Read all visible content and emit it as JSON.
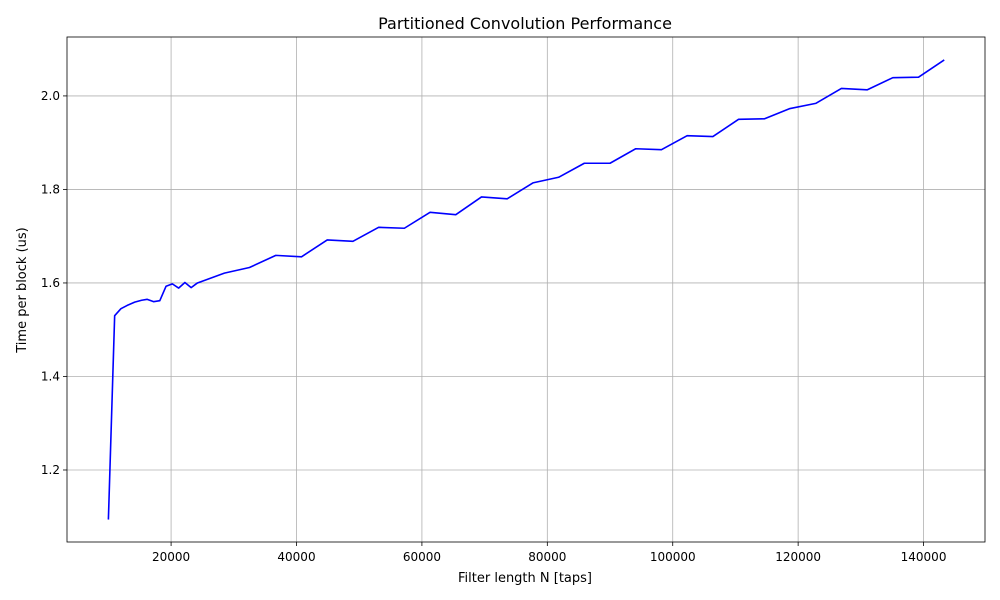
{
  "chart_data": {
    "type": "line",
    "title": "Partitioned Convolution Performance",
    "xlabel": "Filter length N [taps]",
    "ylabel": "Time per block (us)",
    "xlim": [
      3400,
      149800
    ],
    "ylim": [
      1.046,
      2.126
    ],
    "xticks": [
      20000,
      40000,
      60000,
      80000,
      100000,
      120000,
      140000
    ],
    "yticks": [
      1.2,
      1.4,
      1.6,
      1.8,
      2.0
    ],
    "xtick_labels": [
      "20000",
      "40000",
      "60000",
      "80000",
      "100000",
      "120000",
      "140000"
    ],
    "ytick_labels": [
      "1.2",
      "1.4",
      "1.6",
      "1.8",
      "2.0"
    ],
    "grid": true,
    "series": [
      {
        "color": "#0000ff",
        "x": [
          10000,
          11000,
          12000,
          13000,
          14200,
          15300,
          16200,
          17200,
          18200,
          19200,
          20200,
          21200,
          22200,
          23200,
          24200,
          28500,
          32500,
          36700,
          40800,
          44900,
          49000,
          53100,
          57200,
          61300,
          65400,
          69500,
          73600,
          77700,
          81800,
          85900,
          90000,
          94100,
          98200,
          102300,
          106400,
          110500,
          114600,
          118700,
          122800,
          126900,
          131000,
          135100,
          139200,
          143300
        ],
        "y": [
          1.094,
          1.53,
          1.545,
          1.552,
          1.559,
          1.563,
          1.565,
          1.56,
          1.562,
          1.593,
          1.598,
          1.589,
          1.601,
          1.59,
          1.6,
          1.621,
          1.633,
          1.659,
          1.656,
          1.692,
          1.689,
          1.719,
          1.717,
          1.751,
          1.746,
          1.784,
          1.78,
          1.814,
          1.826,
          1.856,
          1.856,
          1.887,
          1.885,
          1.915,
          1.913,
          1.95,
          1.951,
          1.973,
          1.984,
          2.016,
          2.013,
          2.039,
          2.04,
          2.077
        ]
      }
    ]
  }
}
